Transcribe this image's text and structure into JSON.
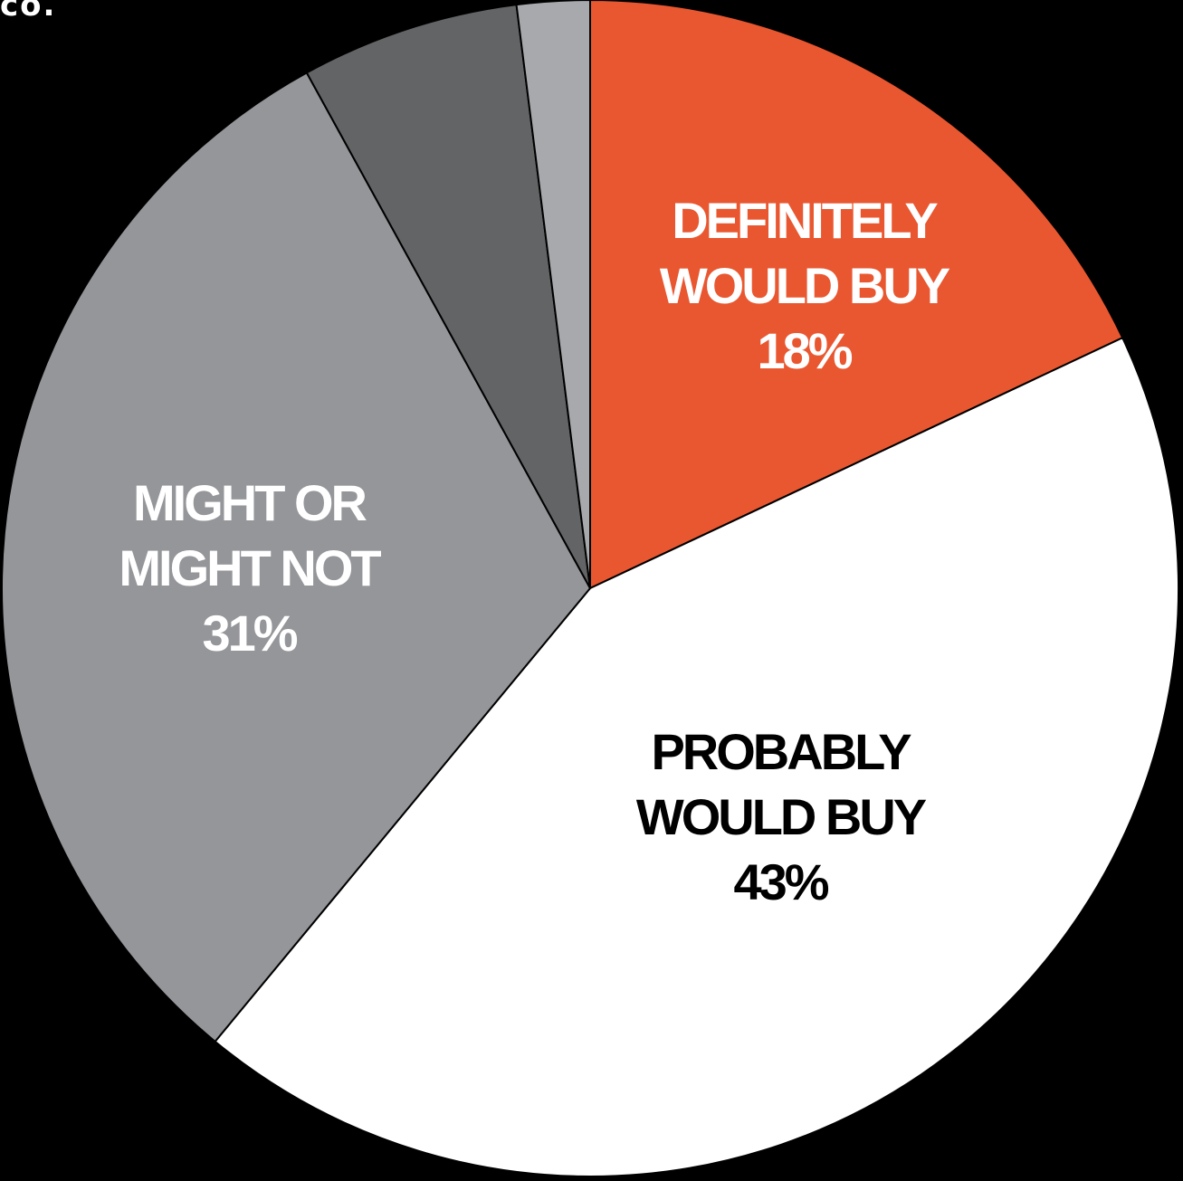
{
  "header": {
    "corner_text": "co."
  },
  "chart_data": {
    "type": "pie",
    "start_angle_deg": 0,
    "direction": "clockwise",
    "slices": [
      {
        "label_lines": [
          "DEFINITELY",
          "WOULD BUY"
        ],
        "value_label": "18%",
        "value": 18,
        "color": "#E95730",
        "text_color": "#FFFFFF"
      },
      {
        "label_lines": [
          "PROBABLY",
          "WOULD BUY"
        ],
        "value_label": "43%",
        "value": 43,
        "color": "#FFFFFF",
        "text_color": "#000000"
      },
      {
        "label_lines": [
          "MIGHT OR",
          "MIGHT NOT"
        ],
        "value_label": "31%",
        "value": 31,
        "color": "#95969A",
        "text_color": "#FFFFFF"
      },
      {
        "label_lines": [],
        "value_label": "",
        "value": 6,
        "color": "#636466",
        "text_color": "#FFFFFF"
      },
      {
        "label_lines": [],
        "value_label": "",
        "value": 2,
        "color": "#A8A9AD",
        "text_color": "#FFFFFF"
      }
    ]
  }
}
